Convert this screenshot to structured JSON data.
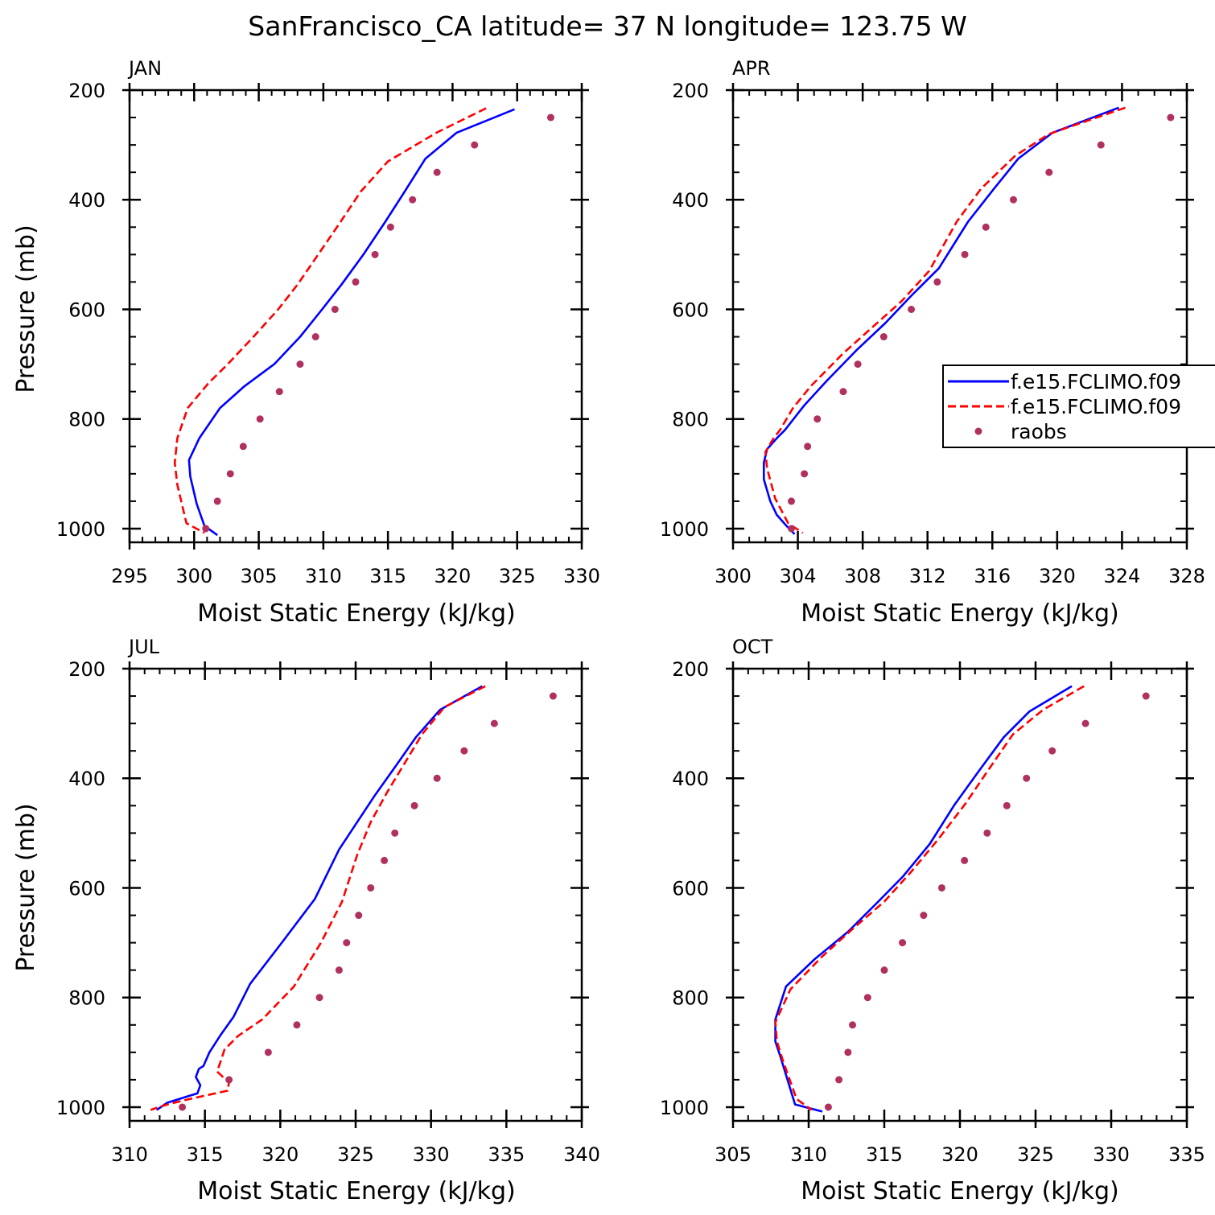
{
  "title": "SanFrancisco_CA  latitude= 37 N longitude= 123.75 W",
  "colors": {
    "model_a": "#0000ff",
    "model_b": "#ff0000",
    "raobs": "#b03060",
    "axis": "#000000"
  },
  "legend": {
    "entries": [
      "f.e15.FCLIMO.f09",
      "f.e15.FCLIMO.f09",
      "raobs"
    ]
  },
  "chart_data": [
    {
      "type": "line",
      "panel": "JAN",
      "title": "JAN",
      "xlabel": "Moist Static Energy (kJ/kg)",
      "ylabel": "Pressure (mb)",
      "xlim": [
        295,
        330
      ],
      "xticks": [
        295,
        300,
        305,
        310,
        315,
        320,
        325,
        330
      ],
      "xminor": 1,
      "ylim": [
        1025,
        200
      ],
      "yticks": [
        200,
        400,
        600,
        800,
        1000
      ],
      "yminor": 50,
      "series": [
        {
          "name": "f.e15.FCLIMO.f09",
          "style": "solid",
          "x": [
            324.8,
            320.3,
            317.9,
            316.3,
            314.8,
            313.1,
            311.4,
            309.9,
            308.2,
            306.2,
            303.9,
            302.0,
            300.4,
            299.6,
            299.7,
            300.2,
            300.8,
            301.8
          ],
          "y": [
            235,
            278,
            325,
            385,
            440,
            500,
            555,
            600,
            650,
            700,
            740,
            780,
            835,
            875,
            905,
            955,
            995,
            1012
          ]
        },
        {
          "name": "f.e15.FCLIMO.f09",
          "style": "dashed",
          "x": [
            322.6,
            318.8,
            315.0,
            312.9,
            311.2,
            309.6,
            308.0,
            306.5,
            304.6,
            302.6,
            301.1,
            299.5,
            298.7,
            298.5,
            298.7,
            299.4,
            300.8
          ],
          "y": [
            233,
            277,
            330,
            385,
            445,
            500,
            555,
            600,
            650,
            700,
            735,
            780,
            835,
            880,
            920,
            990,
            1008
          ]
        },
        {
          "name": "raobs",
          "style": "points",
          "x": [
            327.6,
            321.7,
            318.8,
            316.9,
            315.2,
            314.0,
            312.5,
            310.9,
            309.4,
            308.2,
            306.6,
            305.1,
            303.8,
            302.8,
            301.8,
            300.9
          ],
          "y": [
            250,
            300,
            350,
            400,
            450,
            500,
            550,
            600,
            650,
            700,
            750,
            800,
            850,
            900,
            950,
            1000
          ]
        }
      ]
    },
    {
      "type": "line",
      "panel": "APR",
      "title": "APR",
      "xlabel": "Moist Static Energy (kJ/kg)",
      "ylabel": "",
      "xlim": [
        300,
        328
      ],
      "xticks": [
        300,
        304,
        308,
        312,
        316,
        320,
        324,
        328
      ],
      "xminor": 1,
      "ylim": [
        1025,
        200
      ],
      "yticks": [
        200,
        400,
        600,
        800,
        1000
      ],
      "yminor": 50,
      "series": [
        {
          "name": "f.e15.FCLIMO.f09",
          "style": "solid",
          "x": [
            323.8,
            319.7,
            317.6,
            316.1,
            314.5,
            312.7,
            311.0,
            309.4,
            307.6,
            305.8,
            304.4,
            303.2,
            302.7,
            302.1,
            301.9,
            301.9,
            302.3,
            302.7,
            303.3,
            303.8
          ],
          "y": [
            232,
            278,
            325,
            380,
            440,
            525,
            575,
            625,
            675,
            730,
            775,
            820,
            835,
            855,
            880,
            910,
            950,
            975,
            995,
            1010
          ]
        },
        {
          "name": "f.e15.FCLIMO.f09",
          "style": "dashed",
          "x": [
            324.2,
            319.5,
            317.4,
            315.3,
            313.8,
            312.1,
            310.4,
            308.7,
            306.8,
            304.8,
            303.7,
            302.9,
            302.5,
            302.0,
            302.1,
            302.6,
            303.4,
            304.3
          ],
          "y": [
            232,
            280,
            320,
            380,
            440,
            530,
            585,
            630,
            680,
            740,
            780,
            820,
            835,
            860,
            890,
            945,
            990,
            1008
          ]
        },
        {
          "name": "raobs",
          "style": "points",
          "x": [
            327.0,
            322.7,
            319.5,
            317.3,
            315.6,
            314.3,
            312.6,
            311.0,
            309.3,
            307.7,
            306.8,
            305.2,
            304.6,
            304.4,
            303.6,
            303.6
          ],
          "y": [
            250,
            300,
            350,
            400,
            450,
            500,
            550,
            600,
            650,
            700,
            750,
            800,
            850,
            900,
            950,
            1000
          ]
        }
      ]
    },
    {
      "type": "line",
      "panel": "JUL",
      "title": "JUL",
      "xlabel": "Moist Static Energy (kJ/kg)",
      "ylabel": "Pressure (mb)",
      "xlim": [
        310,
        340
      ],
      "xticks": [
        310,
        315,
        320,
        325,
        330,
        335,
        340
      ],
      "xminor": 1,
      "ylim": [
        1025,
        200
      ],
      "yticks": [
        200,
        400,
        600,
        800,
        1000
      ],
      "yminor": 50,
      "series": [
        {
          "name": "f.e15.FCLIMO.f09",
          "style": "solid",
          "x": [
            333.4,
            330.6,
            329.0,
            327.6,
            326.3,
            325.1,
            323.9,
            322.3,
            320.1,
            318.0,
            316.9,
            316.0,
            315.3,
            314.9,
            314.6,
            314.4,
            314.7,
            314.5,
            313.9,
            312.5,
            311.8
          ],
          "y": [
            232,
            275,
            325,
            380,
            430,
            480,
            530,
            620,
            700,
            775,
            835,
            870,
            900,
            925,
            930,
            945,
            960,
            975,
            980,
            992,
            1005
          ]
        },
        {
          "name": "f.e15.FCLIMO.f09",
          "style": "dashed",
          "x": [
            333.6,
            330.9,
            329.4,
            328.2,
            327.1,
            326.0,
            325.1,
            324.1,
            322.7,
            320.9,
            318.8,
            317.2,
            316.3,
            316.0,
            315.8,
            316.4,
            316.6,
            316.5,
            314.0,
            312.5,
            311.4
          ],
          "y": [
            232,
            270,
            320,
            375,
            425,
            480,
            540,
            625,
            700,
            780,
            840,
            870,
            895,
            920,
            935,
            950,
            955,
            970,
            985,
            995,
            1005
          ]
        },
        {
          "name": "raobs",
          "style": "points",
          "x": [
            338.1,
            334.2,
            332.2,
            330.4,
            328.9,
            327.6,
            326.9,
            326.0,
            325.2,
            324.4,
            323.9,
            322.6,
            321.1,
            319.2,
            316.6,
            313.5
          ],
          "y": [
            250,
            300,
            350,
            400,
            450,
            500,
            550,
            600,
            650,
            700,
            750,
            800,
            850,
            900,
            950,
            1000
          ]
        }
      ]
    },
    {
      "type": "line",
      "panel": "OCT",
      "title": "OCT",
      "xlabel": "Moist Static Energy (kJ/kg)",
      "ylabel": "",
      "xlim": [
        305,
        335
      ],
      "xticks": [
        305,
        310,
        315,
        320,
        325,
        330,
        335
      ],
      "xminor": 1,
      "ylim": [
        1025,
        200
      ],
      "yticks": [
        200,
        400,
        600,
        800,
        1000
      ],
      "yminor": 50,
      "series": [
        {
          "name": "f.e15.FCLIMO.f09",
          "style": "solid",
          "x": [
            327.4,
            324.6,
            322.9,
            321.3,
            319.6,
            318.0,
            316.2,
            314.6,
            312.6,
            310.4,
            308.5,
            307.8,
            307.8,
            308.1,
            309.1,
            310.9
          ],
          "y": [
            232,
            278,
            325,
            385,
            450,
            520,
            580,
            625,
            680,
            730,
            780,
            840,
            880,
            905,
            995,
            1008
          ]
        },
        {
          "name": "f.e15.FCLIMO.f09",
          "style": "dashed",
          "x": [
            328.2,
            325.5,
            323.5,
            322.0,
            320.4,
            318.6,
            316.8,
            315.0,
            312.9,
            310.9,
            308.8,
            307.8,
            307.9,
            308.3,
            309.2,
            310.2
          ],
          "y": [
            232,
            275,
            320,
            380,
            445,
            510,
            570,
            625,
            675,
            725,
            785,
            845,
            880,
            915,
            985,
            1005
          ]
        },
        {
          "name": "raobs",
          "style": "points",
          "x": [
            332.3,
            328.3,
            326.1,
            324.4,
            323.1,
            321.8,
            320.3,
            318.8,
            317.6,
            316.2,
            315.0,
            313.9,
            312.9,
            312.6,
            312.0,
            311.3
          ],
          "y": [
            250,
            300,
            350,
            400,
            450,
            500,
            550,
            600,
            650,
            700,
            750,
            800,
            850,
            900,
            950,
            1000
          ]
        }
      ]
    }
  ]
}
